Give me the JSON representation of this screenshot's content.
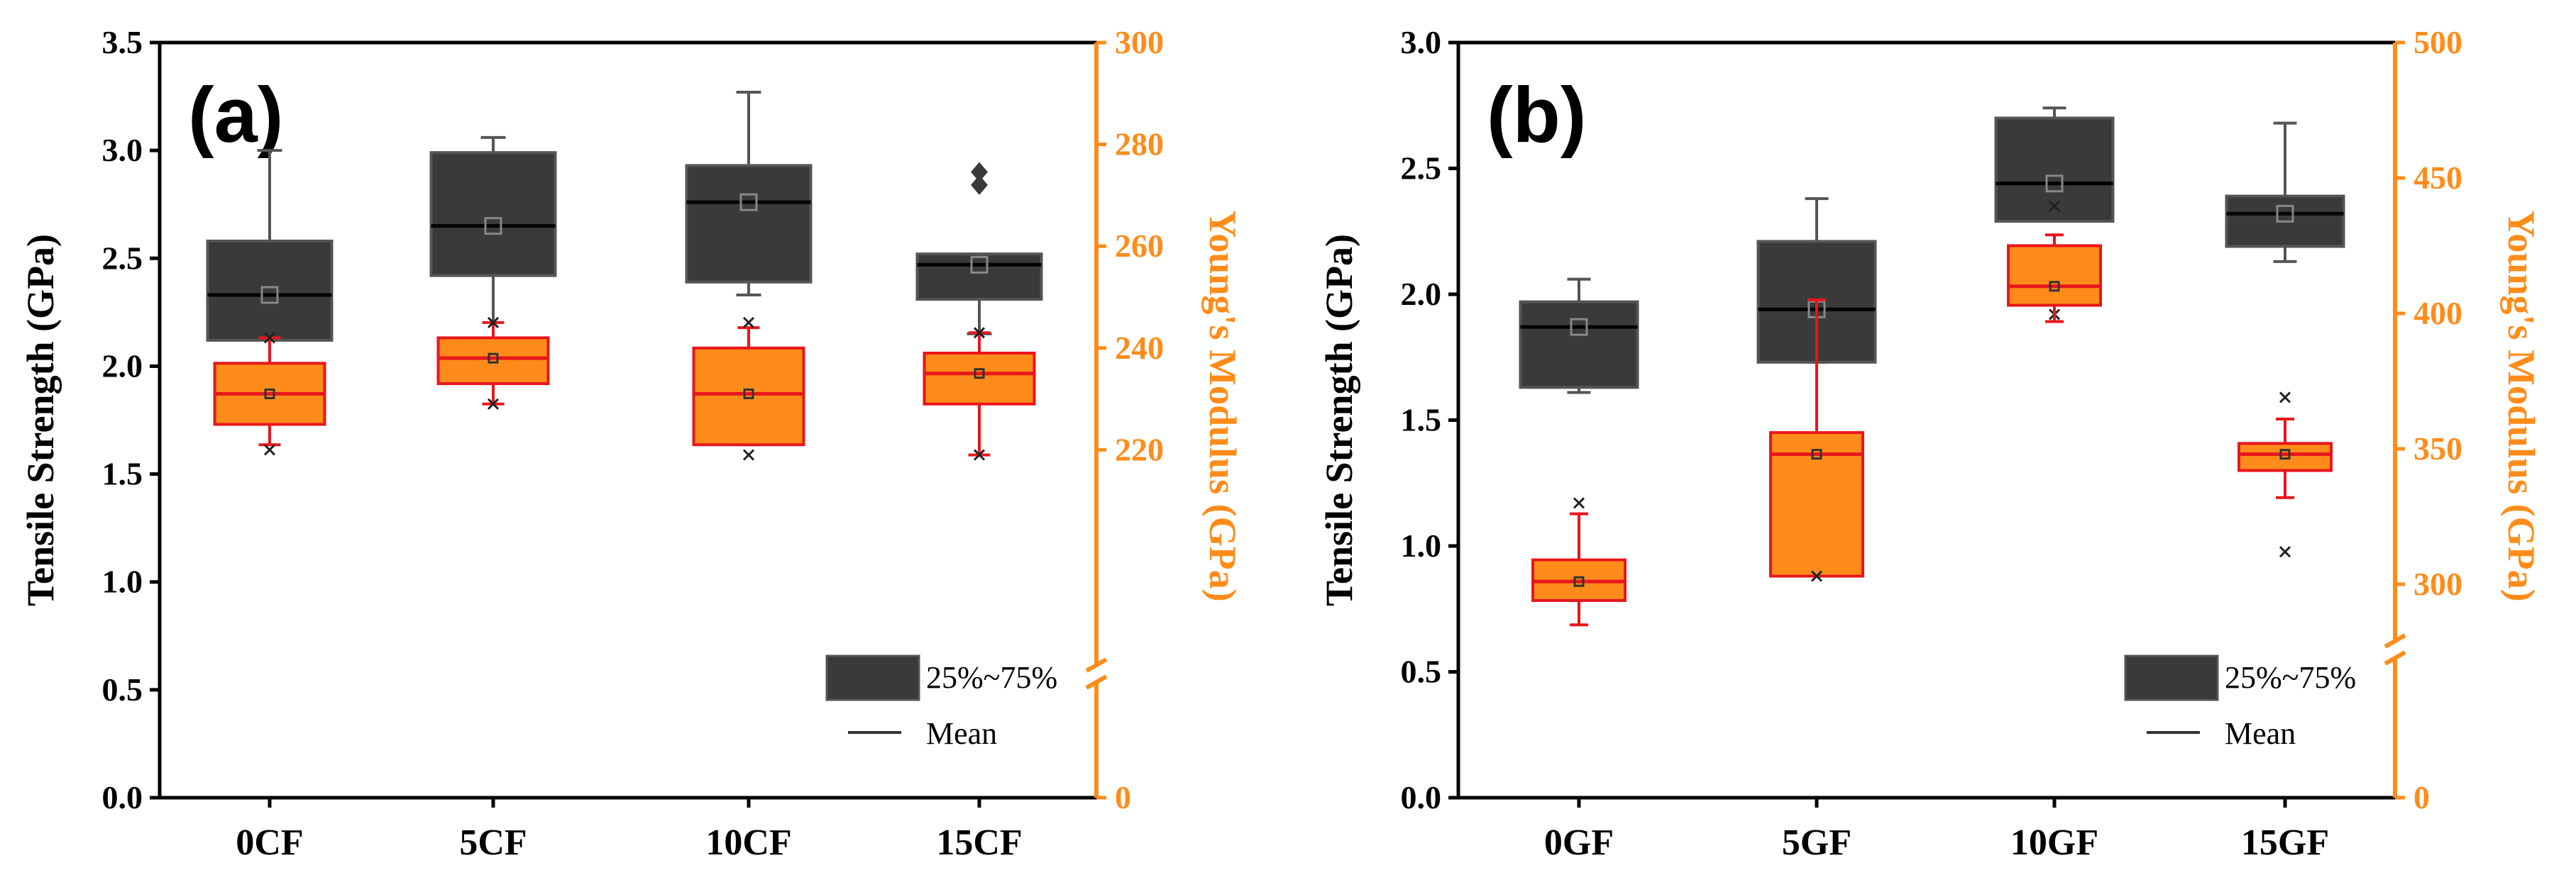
{
  "colors": {
    "tensile_box": "#3a3a3a",
    "modulus_box": "#ff8c1a",
    "modulus_edge": "#e8161c",
    "right_axis": "#ff8c1a",
    "axis": "#000000"
  },
  "chart_data": [
    {
      "type": "box",
      "panel_label": "(a)",
      "categories": [
        "0CF",
        "5CF",
        "10CF",
        "15CF"
      ],
      "left_axis": {
        "label": "Tensile Strength (GPa)",
        "range": [
          0,
          3.5
        ],
        "ticks": [
          "0.0",
          "0.5",
          "1.0",
          "1.5",
          "2.0",
          "2.5",
          "3.0",
          "3.5"
        ]
      },
      "right_axis": {
        "label": "Young's Modulus (GPa)",
        "zero_label": "0",
        "break": true,
        "range": [
          200,
          300
        ],
        "ticks": [
          "220",
          "240",
          "260",
          "280",
          "300"
        ]
      },
      "series": [
        {
          "name": "Tensile Strength",
          "axis": "left",
          "boxes": [
            {
              "q1": 2.12,
              "median": 2.33,
              "q3": 2.58,
              "lower": 1.75,
              "upper": 3.0,
              "mean": 2.33,
              "outliers": [
                1.84
              ]
            },
            {
              "q1": 2.42,
              "median": 2.65,
              "q3": 2.99,
              "lower": 2.02,
              "upper": 3.06,
              "mean": 2.65,
              "outliers": []
            },
            {
              "q1": 2.39,
              "median": 2.76,
              "q3": 2.93,
              "lower": 2.33,
              "upper": 3.27,
              "mean": 2.76,
              "outliers": []
            },
            {
              "q1": 2.31,
              "median": 2.47,
              "q3": 2.52,
              "lower": 2.15,
              "upper": 2.52,
              "mean": 2.47,
              "outliers": [
                2.84,
                2.9
              ]
            }
          ]
        },
        {
          "name": "Young's Modulus",
          "axis": "right",
          "boxes": [
            {
              "q1": 225,
              "median": 231,
              "q3": 237,
              "lower": 221,
              "upper": 242,
              "mean": 231,
              "outliers": [
                220,
                242
              ]
            },
            {
              "q1": 233,
              "median": 238,
              "q3": 242,
              "lower": 229,
              "upper": 245,
              "mean": 238,
              "outliers": [
                229,
                245
              ]
            },
            {
              "q1": 221,
              "median": 231,
              "q3": 240,
              "lower": 221,
              "upper": 244,
              "mean": 231,
              "outliers": [
                219,
                245
              ]
            },
            {
              "q1": 229,
              "median": 235,
              "q3": 239,
              "lower": 219,
              "upper": 243,
              "mean": 235,
              "outliers": [
                219,
                243
              ]
            }
          ]
        }
      ],
      "legend": {
        "box": "25%~75%",
        "mean": "Mean",
        "position": "bottom-right"
      }
    },
    {
      "type": "box",
      "panel_label": "(b)",
      "categories": [
        "0GF",
        "5GF",
        "10GF",
        "15GF"
      ],
      "left_axis": {
        "label": "Tensile Strength (GPa)",
        "range": [
          0,
          3.0
        ],
        "ticks": [
          "0.0",
          "0.5",
          "1.0",
          "1.5",
          "2.0",
          "2.5",
          "3.0"
        ]
      },
      "right_axis": {
        "label": "Young's Modulus (GPa)",
        "zero_label": "0",
        "break": true,
        "range": [
          250,
          500
        ],
        "ticks": [
          "300",
          "350",
          "400",
          "450",
          "500"
        ]
      },
      "series": [
        {
          "name": "Tensile Strength",
          "axis": "left",
          "boxes": [
            {
              "q1": 1.63,
              "median": 1.87,
              "q3": 1.97,
              "lower": 1.61,
              "upper": 2.06,
              "mean": 1.87,
              "outliers": []
            },
            {
              "q1": 1.73,
              "median": 1.94,
              "q3": 2.21,
              "lower": 1.73,
              "upper": 2.38,
              "mean": 1.94,
              "outliers": []
            },
            {
              "q1": 2.29,
              "median": 2.44,
              "q3": 2.7,
              "lower": 2.29,
              "upper": 2.74,
              "mean": 2.44,
              "outliers": [
                1.92,
                2.35
              ]
            },
            {
              "q1": 2.19,
              "median": 2.32,
              "q3": 2.39,
              "lower": 2.13,
              "upper": 2.68,
              "mean": 2.32,
              "outliers": []
            }
          ]
        },
        {
          "name": "Young's Modulus",
          "axis": "right",
          "boxes": [
            {
              "q1": 294,
              "median": 301,
              "q3": 309,
              "lower": 285,
              "upper": 326,
              "mean": 301,
              "outliers": [
                330
              ]
            },
            {
              "q1": 303,
              "median": 348,
              "q3": 356,
              "lower": 303,
              "upper": 405,
              "mean": 348,
              "outliers": [
                303
              ]
            },
            {
              "q1": 403,
              "median": 410,
              "q3": 425,
              "lower": 397,
              "upper": 429,
              "mean": 410,
              "outliers": []
            },
            {
              "q1": 342,
              "median": 348,
              "q3": 352,
              "lower": 332,
              "upper": 361,
              "mean": 348,
              "outliers": [
                312,
                369
              ]
            }
          ]
        }
      ],
      "legend": {
        "box": "25%~75%",
        "mean": "Mean",
        "position": "bottom-right"
      }
    }
  ]
}
